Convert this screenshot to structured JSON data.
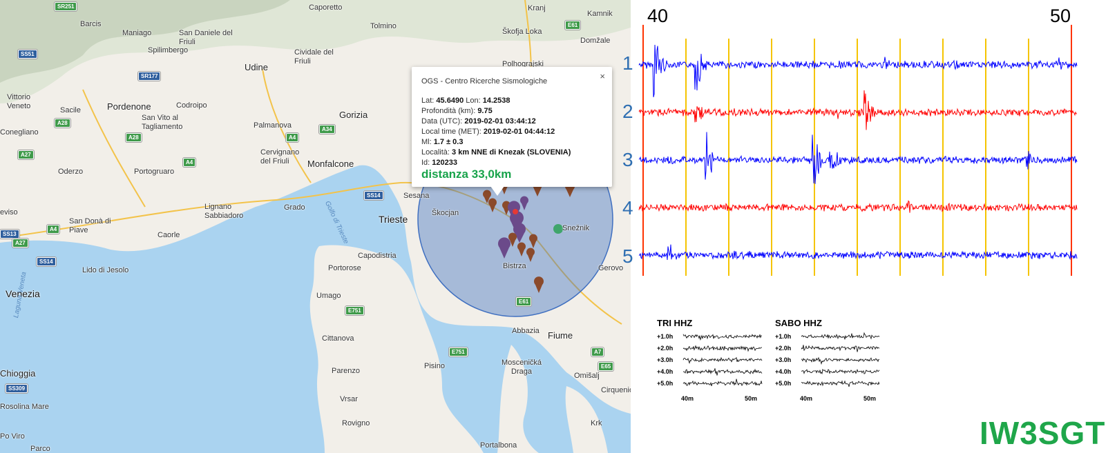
{
  "map": {
    "places": [
      {
        "name": "Caporetto"
      },
      {
        "name": "Kranj"
      },
      {
        "name": "Kamnik"
      },
      {
        "name": "Barcis"
      },
      {
        "name": "Maniago"
      },
      {
        "name": "San Daniele del Friuli"
      },
      {
        "name": "Tolmino"
      },
      {
        "name": "Škofja Loka"
      },
      {
        "name": "Domžale"
      },
      {
        "name": "Spilimbergo"
      },
      {
        "name": "Udine"
      },
      {
        "name": "Cividale del Friuli"
      },
      {
        "name": "Polhograjski"
      },
      {
        "name": "Vittorio Veneto"
      },
      {
        "name": "Sacile"
      },
      {
        "name": "Pordenone"
      },
      {
        "name": "Codroipo"
      },
      {
        "name": "Gorizia"
      },
      {
        "name": "San Vito al Tagliamento"
      },
      {
        "name": "Palmanova"
      },
      {
        "name": "Conegliano"
      },
      {
        "name": "Cervignano del Friuli"
      },
      {
        "name": "Oderzo"
      },
      {
        "name": "Portogruaro"
      },
      {
        "name": "Monfalcone"
      },
      {
        "name": "Sesana"
      },
      {
        "name": "Trieste"
      },
      {
        "name": "Lignano Sabbiadoro"
      },
      {
        "name": "Grado"
      },
      {
        "name": "San Donà di Piave"
      },
      {
        "name": "Caorle"
      },
      {
        "name": "Škocjan"
      },
      {
        "name": "Snežnik"
      },
      {
        "name": "Bistrza"
      },
      {
        "name": "Capodistria"
      },
      {
        "name": "Portorose"
      },
      {
        "name": "Lido di Jesolo"
      },
      {
        "name": "Venezia"
      },
      {
        "name": "Umago"
      },
      {
        "name": "Gerovo"
      },
      {
        "name": "Abbazia"
      },
      {
        "name": "Fiume"
      },
      {
        "name": "Cittanova"
      },
      {
        "name": "Pisino"
      },
      {
        "name": "Mosceničká Draga"
      },
      {
        "name": "Omišalj"
      },
      {
        "name": "Parenzo"
      },
      {
        "name": "Chioggia"
      },
      {
        "name": "Vrsar"
      },
      {
        "name": "Cirquenio"
      },
      {
        "name": "Rosolina Mare"
      },
      {
        "name": "Rovigno"
      },
      {
        "name": "Portalbona"
      },
      {
        "name": "Krk"
      },
      {
        "name": "Po Viro"
      },
      {
        "name": "Parco"
      },
      {
        "name": "eviso"
      },
      {
        "name": "Golfo di Trieste"
      },
      {
        "name": "Laguna Veneta"
      }
    ],
    "shields": [
      {
        "label": "SR251"
      },
      {
        "label": "SS51"
      },
      {
        "label": "SR177"
      },
      {
        "label": "A28"
      },
      {
        "label": "A28"
      },
      {
        "label": "A4"
      },
      {
        "label": "A34"
      },
      {
        "label": "A27"
      },
      {
        "label": "A4"
      },
      {
        "label": "SS14"
      },
      {
        "label": "A4"
      },
      {
        "label": "SS13"
      },
      {
        "label": "A27"
      },
      {
        "label": "SS14"
      },
      {
        "label": "E751"
      },
      {
        "label": "E61"
      },
      {
        "label": "E61"
      },
      {
        "label": "E751"
      },
      {
        "label": "A7"
      },
      {
        "label": "E65"
      },
      {
        "label": "SS309"
      }
    ],
    "popup": {
      "org": "OGS - Centro Ricerche Sismologiche",
      "close": "×",
      "lat_label": "Lat:",
      "lat": "45.6490",
      "lon_label": "Lon:",
      "lon": "14.2538",
      "depth_label": "Profondità (km):",
      "depth": "9.75",
      "utc_label": "Data (UTC):",
      "utc": "2019-02-01 03:44:12",
      "local_label": "Local time (MET):",
      "local": "2019-02-01 04:44:12",
      "ml_label": "Ml:",
      "ml": "1.7 ± 0.3",
      "loc_label": "Località:",
      "loc": "3 km NNE di Knezak (SLOVENIA)",
      "id_label": "Id:",
      "id": "120233",
      "distance": "distanza 33,0km"
    },
    "colors": {
      "sea": "#aad3f0",
      "land": "#f2efe9",
      "circle": "#3f6fc0",
      "marker": "#8b4a2b",
      "marker_purple": "#6b4a8a",
      "marker_red": "#e53935"
    }
  },
  "seismogram": {
    "minute_labels": [
      "40",
      "50"
    ],
    "row_labels": [
      "1",
      "2",
      "3",
      "4",
      "5"
    ],
    "trace_colors": [
      "#0000ff",
      "#ff0000",
      "#0000ff",
      "#ff0000",
      "#0000ff"
    ],
    "mini": [
      {
        "title": "TRI HHZ",
        "rows": [
          "+1.0h",
          "+2.0h",
          "+3.0h",
          "+4.0h",
          "+5.0h"
        ],
        "x_labels": [
          "40m",
          "50m"
        ]
      },
      {
        "title": "SABO HHZ",
        "rows": [
          "+1.0h",
          "+2.0h",
          "+3.0h",
          "+4.0h",
          "+5.0h"
        ],
        "x_labels": [
          "40m",
          "50m"
        ]
      }
    ]
  },
  "callsign": "IW3SGT"
}
